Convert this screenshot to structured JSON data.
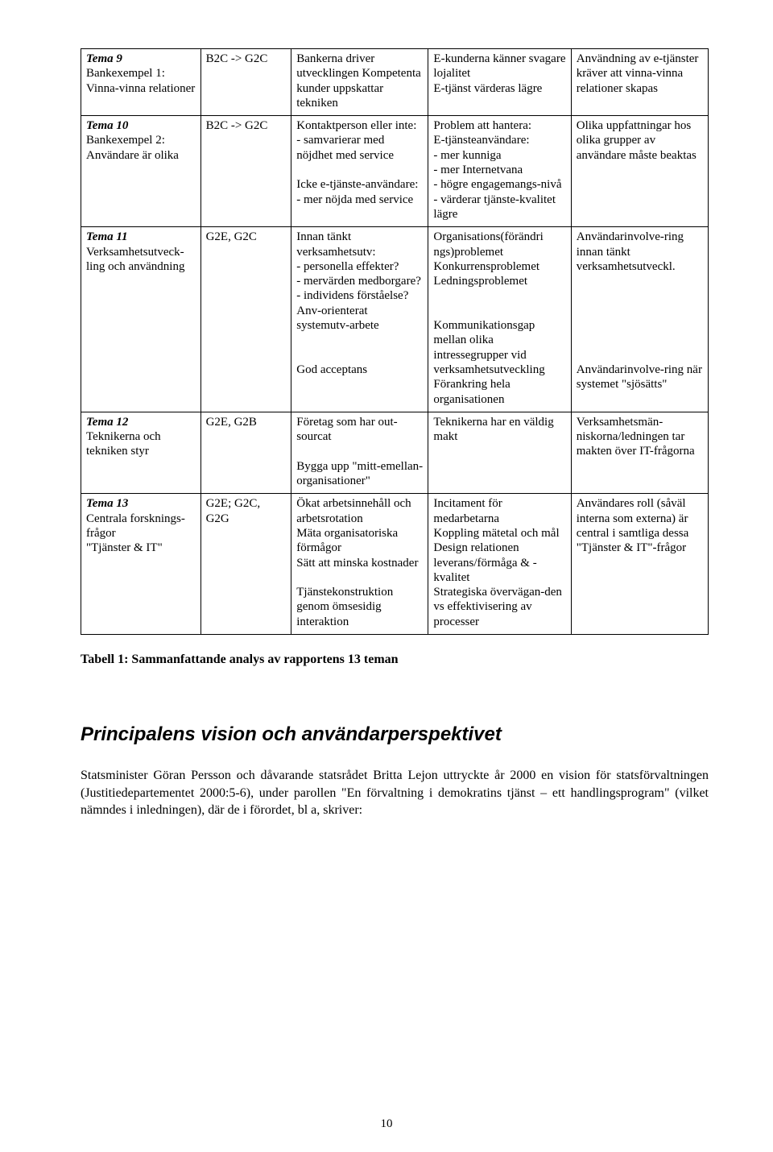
{
  "rows": [
    {
      "theme_label": "Tema 9",
      "theme_desc": "Bankexempel 1: Vinna-vinna relationer",
      "code": "B2C -> G2C",
      "col2": "Bankerna driver utvecklingen Kompetenta kunder uppskattar tekniken",
      "col3": "E-kunderna känner svagare lojalitet\nE-tjänst värderas lägre",
      "col4": "Användning av e-tjänster kräver att vinna-vinna relationer skapas"
    },
    {
      "theme_label": "Tema 10",
      "theme_desc": "Bankexempel 2: Användare är olika",
      "code": "B2C -> G2C",
      "col2": "Kontaktperson eller inte:\n- samvarierar med nöjdhet med service\n\nIcke e-tjänste-användare:\n- mer nöjda med service",
      "col3": "Problem att hantera:\nE-tjänsteanvändare:\n- mer kunniga\n- mer Internetvana\n- högre engagemangs-nivå\n- värderar tjänste-kvalitet  lägre",
      "col4": "Olika uppfattningar hos olika grupper av användare måste beaktas"
    },
    {
      "theme_label": "Tema 11",
      "theme_desc": "Verksamhetsutveck-ling och användning",
      "code": "G2E, G2C",
      "col2": "Innan tänkt verksamhetsutv:\n- personella effekter?\n- mervärden medborgare?\n- individens förståelse?\nAnv-orienterat systemutv-arbete\n\n\nGod acceptans",
      "col3": "Organisations(förändri\nngs)problemet\nKonkurrensproblemet\nLedningsproblemet\n\n\nKommunikationsgap mellan olika intressegrupper vid verksamhetsutveckling\nFörankring hela organisationen",
      "col4": "Användarinvolve-ring innan tänkt verksamhetsutveckl.\n\n\n\n\n\n\nAnvändarinvolve-ring när systemet \"sjösätts\""
    },
    {
      "theme_label": "Tema 12",
      "theme_desc": "Teknikerna och tekniken styr",
      "code": "G2E, G2B",
      "col2": "Företag som har out-sourcat\n\nBygga upp \"mitt-emellan-organisationer\"",
      "col3": "Teknikerna har en väldig makt",
      "col4": "Verksamhetsmän-niskorna/ledningen tar makten över IT-frågorna"
    },
    {
      "theme_label": "Tema 13",
      "theme_desc": "Centrala forsknings-frågor\n\"Tjänster & IT\"",
      "code": "G2E; G2C, G2G",
      "col2": "Ökat arbetsinnehåll och arbetsrotation\nMäta organisatoriska förmågor\nSätt att minska kostnader\n\nTjänstekonstruktion genom ömsesidig interaktion",
      "col3": "Incitament för medarbetarna\nKoppling mätetal och mål\nDesign relationen leverans/förmåga & -kvalitet\nStrategiska övervägan-den vs effektivisering av processer",
      "col4": "Användares roll (såväl interna som externa) är central i samtliga dessa \"Tjänster & IT\"-frågor"
    }
  ],
  "caption": "Tabell 1: Sammanfattande analys av rapportens 13 teman",
  "heading": "Principalens vision och användarperspektivet",
  "body": "Statsminister Göran Persson och dåvarande statsrådet Britta Lejon uttryckte år 2000 en vision för statsförvaltningen (Justitiedepartementet 2000:5-6), under parollen \"En förvaltning i demokratins tjänst – ett handlingsprogram\" (vilket nämndes i inledningen), där de i förordet, bl a, skriver:",
  "page_number": "10"
}
